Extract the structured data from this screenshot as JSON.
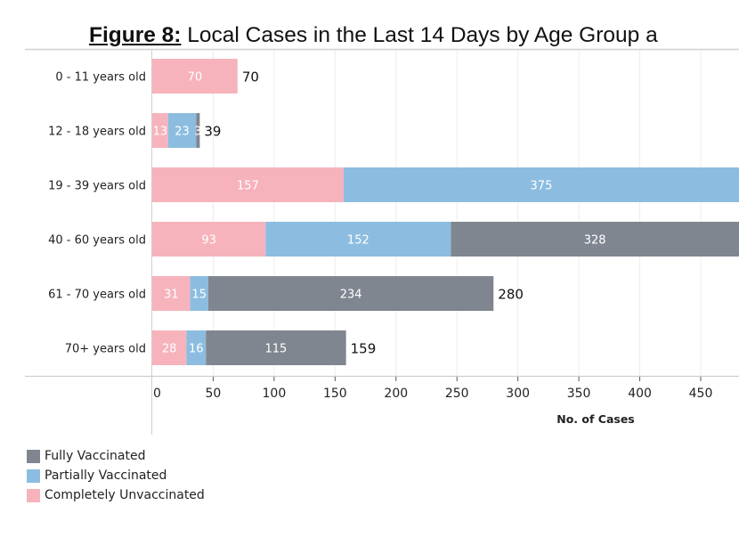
{
  "chart_data": {
    "type": "bar",
    "orientation": "horizontal",
    "stacked": true,
    "title_prefix": "Figure 8:",
    "title": "Local Cases in the Last 14 Days by Age Group a",
    "xlabel": "No. of Cases",
    "ylabel": "",
    "xlim": [
      0,
      482
    ],
    "xticks": [
      0,
      50,
      100,
      150,
      200,
      250,
      300,
      350,
      400,
      450
    ],
    "grid": true,
    "legend_position": "bottom-left",
    "categories": [
      "0 - 11 years old",
      "12 - 18 years old",
      "19 - 39 years old",
      "40 - 60 years old",
      "61 - 70 years old",
      "70+ years old"
    ],
    "series": [
      {
        "name": "Completely Unvaccinated",
        "color": "#f7b3bc",
        "values": [
          70,
          13,
          157,
          93,
          31,
          28
        ]
      },
      {
        "name": "Partially Vaccinated",
        "color": "#8cbde0",
        "values": [
          0,
          23,
          375,
          152,
          15,
          16
        ]
      },
      {
        "name": "Fully Vaccinated",
        "color": "#808690",
        "values": [
          0,
          3,
          0,
          328,
          234,
          115
        ]
      }
    ],
    "totals": [
      70,
      39,
      null,
      null,
      280,
      159
    ],
    "legend": [
      "Fully Vaccinated",
      "Partially Vaccinated",
      "Completely Unvaccinated"
    ],
    "legend_colors": [
      "#808690",
      "#8cbde0",
      "#f7b3bc"
    ]
  }
}
